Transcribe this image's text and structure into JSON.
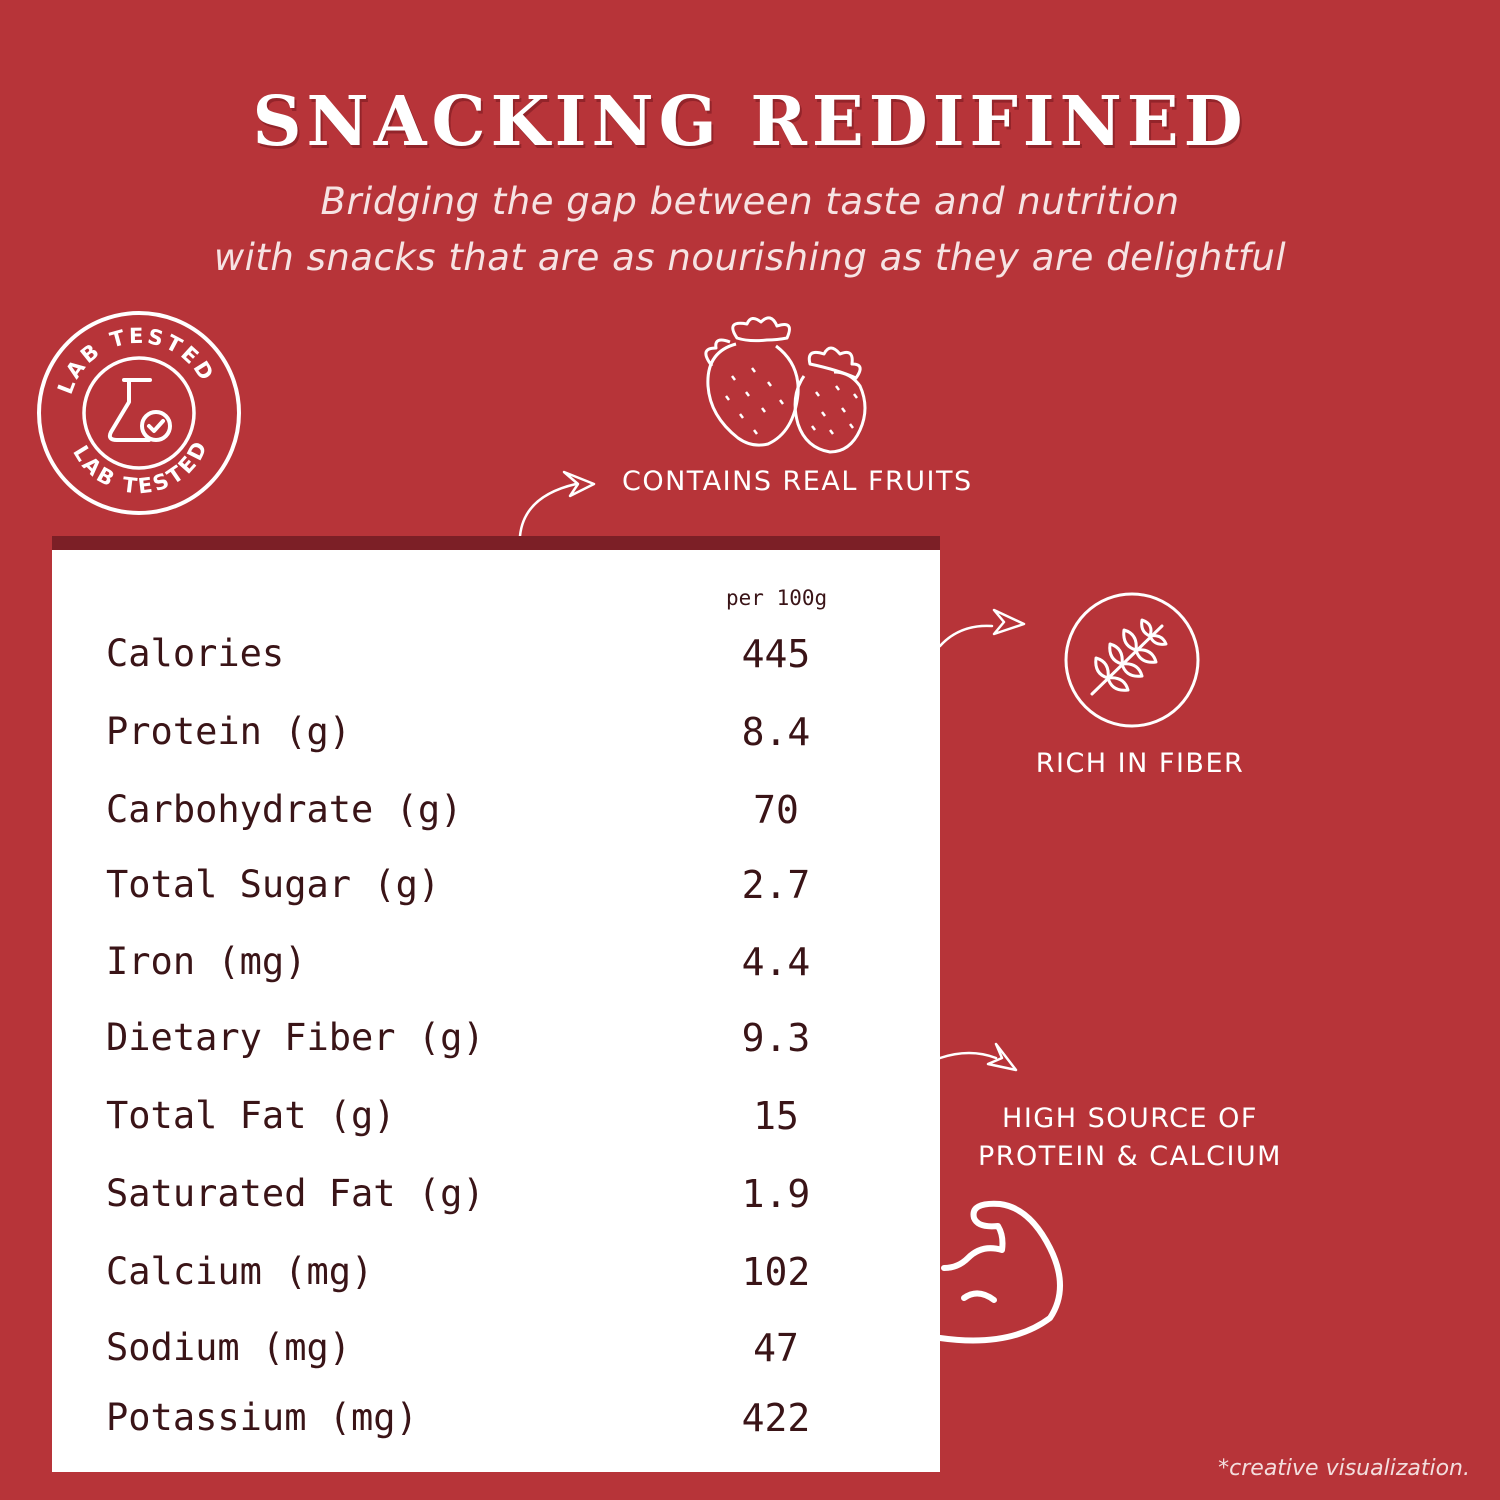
{
  "header": {
    "title": "SNACKING REDIFINED",
    "subtitle_line1": "Bridging the gap between taste and nutrition",
    "subtitle_line2": "with snacks that are as nourishing as they are delightful"
  },
  "badge": {
    "text": "LAB TESTED",
    "icon": "flask-check-icon"
  },
  "features": {
    "fruits": {
      "label": "CONTAINS REAL FRUITS",
      "icon": "strawberry-icon"
    },
    "fiber": {
      "label": "RICH IN FIBER",
      "icon": "wheat-icon"
    },
    "protein": {
      "line1": "HIGH SOURCE OF",
      "line2": "PROTEIN & CALCIUM",
      "icon": "flexed-arm-icon"
    }
  },
  "nutrition": {
    "column_header": "per 100g",
    "rows": [
      {
        "name": "Calories",
        "value": "445"
      },
      {
        "name": "Protein (g)",
        "value": "8.4"
      },
      {
        "name": "Carbohydrate (g)",
        "value": "70"
      },
      {
        "name": "Total Sugar (g)",
        "value": "2.7"
      },
      {
        "name": "Iron (mg)",
        "value": "4.4"
      },
      {
        "name": "Dietary Fiber (g)",
        "value": "9.3"
      },
      {
        "name": "Total Fat (g)",
        "value": "15"
      },
      {
        "name": "Saturated Fat (g)",
        "value": "1.9"
      },
      {
        "name": "Calcium (mg)",
        "value": "102"
      },
      {
        "name": "Sodium (mg)",
        "value": "47"
      },
      {
        "name": "Potassium (mg)",
        "value": "422"
      }
    ]
  },
  "footnote": "*creative visualization.",
  "colors": {
    "background": "#b73439",
    "card_top_bar": "#7c1f26",
    "text_dark": "#3a1417",
    "text_light": "#ffffff"
  }
}
